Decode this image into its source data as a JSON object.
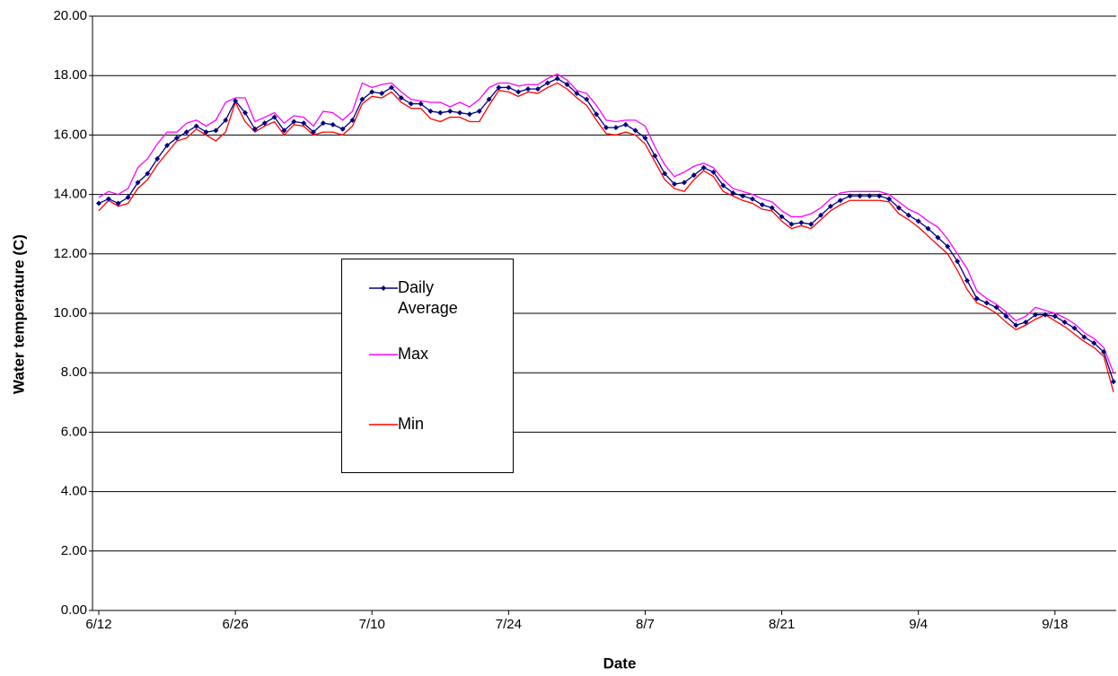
{
  "chart_data": {
    "type": "line",
    "x_label": "Date",
    "y_label": "Water temperature (C)",
    "x": [
      "6/12",
      "6/13",
      "6/14",
      "6/15",
      "6/16",
      "6/17",
      "6/18",
      "6/19",
      "6/20",
      "6/21",
      "6/22",
      "6/23",
      "6/24",
      "6/25",
      "6/26",
      "6/27",
      "6/28",
      "6/29",
      "6/30",
      "7/1",
      "7/2",
      "7/3",
      "7/4",
      "7/5",
      "7/6",
      "7/7",
      "7/8",
      "7/9",
      "7/10",
      "7/11",
      "7/12",
      "7/13",
      "7/14",
      "7/15",
      "7/16",
      "7/17",
      "7/18",
      "7/19",
      "7/20",
      "7/21",
      "7/22",
      "7/23",
      "7/24",
      "7/25",
      "7/26",
      "7/27",
      "7/28",
      "7/29",
      "7/30",
      "7/31",
      "8/1",
      "8/2",
      "8/3",
      "8/4",
      "8/5",
      "8/6",
      "8/7",
      "8/8",
      "8/9",
      "8/10",
      "8/11",
      "8/12",
      "8/13",
      "8/14",
      "8/15",
      "8/16",
      "8/17",
      "8/18",
      "8/19",
      "8/20",
      "8/21",
      "8/22",
      "8/23",
      "8/24",
      "8/25",
      "8/26",
      "8/27",
      "8/28",
      "8/29",
      "8/30",
      "8/31",
      "9/1",
      "9/2",
      "9/3",
      "9/4",
      "9/5",
      "9/6",
      "9/7",
      "9/8",
      "9/9",
      "9/10",
      "9/11",
      "9/12",
      "9/13",
      "9/14",
      "9/15",
      "9/16",
      "9/17",
      "9/18",
      "9/19",
      "9/20",
      "9/21",
      "9/22",
      "9/23",
      "9/24"
    ],
    "xticks": [
      "6/12",
      "6/26",
      "7/10",
      "7/24",
      "8/7",
      "8/21",
      "9/4",
      "9/18"
    ],
    "ylim": [
      0,
      20
    ],
    "yticks": [
      {
        "value": 0,
        "label": "0.00"
      },
      {
        "value": 2,
        "label": "2.00"
      },
      {
        "value": 4,
        "label": "4.00"
      },
      {
        "value": 6,
        "label": "6.00"
      },
      {
        "value": 8,
        "label": "8.00"
      },
      {
        "value": 10,
        "label": "10.00"
      },
      {
        "value": 12,
        "label": "12.00"
      },
      {
        "value": 14,
        "label": "14.00"
      },
      {
        "value": 16,
        "label": "16.00"
      },
      {
        "value": 18,
        "label": "18.00"
      },
      {
        "value": 20,
        "label": "20.00"
      }
    ],
    "grid": true,
    "series": [
      {
        "name": "Daily Average",
        "color": "#000080",
        "marker": "diamond",
        "values": [
          13.7,
          13.85,
          13.7,
          13.9,
          14.4,
          14.7,
          15.2,
          15.65,
          15.9,
          16.1,
          16.3,
          16.1,
          16.15,
          16.5,
          17.15,
          16.75,
          16.2,
          16.4,
          16.6,
          16.15,
          16.45,
          16.4,
          16.1,
          16.4,
          16.35,
          16.2,
          16.5,
          17.2,
          17.45,
          17.4,
          17.6,
          17.25,
          17.05,
          17.05,
          16.8,
          16.75,
          16.8,
          16.75,
          16.7,
          16.8,
          17.2,
          17.6,
          17.6,
          17.45,
          17.55,
          17.55,
          17.75,
          17.9,
          17.7,
          17.4,
          17.2,
          16.7,
          16.25,
          16.25,
          16.35,
          16.15,
          15.9,
          15.3,
          14.7,
          14.35,
          14.4,
          14.65,
          14.9,
          14.75,
          14.3,
          14.05,
          13.95,
          13.85,
          13.65,
          13.55,
          13.25,
          13.0,
          13.05,
          13.0,
          13.3,
          13.6,
          13.8,
          13.95,
          13.95,
          13.95,
          13.95,
          13.85,
          13.55,
          13.3,
          13.1,
          12.85,
          12.55,
          12.25,
          11.75,
          11.1,
          10.5,
          10.35,
          10.2,
          9.9,
          9.6,
          9.7,
          9.95,
          9.95,
          9.9,
          9.7,
          9.5,
          9.2,
          9.0,
          8.7,
          7.7
        ]
      },
      {
        "name": "Max",
        "color": "#ff00ff",
        "values": [
          13.9,
          14.1,
          14.0,
          14.2,
          14.9,
          15.2,
          15.7,
          16.1,
          16.1,
          16.4,
          16.5,
          16.3,
          16.5,
          17.1,
          17.25,
          17.25,
          16.45,
          16.6,
          16.75,
          16.4,
          16.65,
          16.6,
          16.3,
          16.8,
          16.75,
          16.5,
          16.8,
          17.75,
          17.6,
          17.7,
          17.75,
          17.45,
          17.2,
          17.15,
          17.1,
          17.1,
          16.95,
          17.1,
          16.95,
          17.2,
          17.6,
          17.75,
          17.75,
          17.65,
          17.7,
          17.7,
          17.9,
          18.05,
          17.85,
          17.5,
          17.4,
          17.0,
          16.5,
          16.45,
          16.5,
          16.5,
          16.3,
          15.6,
          15.0,
          14.6,
          14.75,
          14.95,
          15.05,
          14.9,
          14.5,
          14.2,
          14.1,
          14.0,
          13.85,
          13.75,
          13.45,
          13.25,
          13.25,
          13.35,
          13.55,
          13.85,
          14.05,
          14.1,
          14.1,
          14.1,
          14.1,
          14.0,
          13.75,
          13.5,
          13.35,
          13.1,
          12.9,
          12.5,
          12.0,
          11.5,
          10.75,
          10.5,
          10.3,
          10.05,
          9.75,
          9.9,
          10.2,
          10.1,
          10.0,
          9.85,
          9.65,
          9.35,
          9.15,
          8.85,
          8.0
        ]
      },
      {
        "name": "Min",
        "color": "#ff0000",
        "values": [
          13.45,
          13.8,
          13.6,
          13.7,
          14.2,
          14.5,
          15.0,
          15.4,
          15.8,
          15.9,
          16.2,
          16.0,
          15.8,
          16.1,
          17.1,
          16.45,
          16.1,
          16.3,
          16.45,
          16.0,
          16.35,
          16.3,
          16.0,
          16.1,
          16.1,
          16.0,
          16.3,
          17.05,
          17.3,
          17.25,
          17.45,
          17.1,
          16.9,
          16.9,
          16.55,
          16.45,
          16.6,
          16.6,
          16.45,
          16.45,
          17.0,
          17.5,
          17.45,
          17.3,
          17.45,
          17.4,
          17.6,
          17.75,
          17.55,
          17.25,
          17.0,
          16.5,
          16.05,
          16.0,
          16.1,
          16.0,
          15.7,
          15.1,
          14.5,
          14.2,
          14.1,
          14.5,
          14.8,
          14.6,
          14.1,
          13.95,
          13.8,
          13.7,
          13.5,
          13.45,
          13.1,
          12.85,
          12.95,
          12.85,
          13.15,
          13.45,
          13.65,
          13.8,
          13.8,
          13.8,
          13.8,
          13.75,
          13.35,
          13.15,
          12.9,
          12.6,
          12.3,
          12.0,
          11.45,
          10.8,
          10.35,
          10.2,
          10.0,
          9.7,
          9.45,
          9.6,
          9.8,
          9.95,
          9.75,
          9.55,
          9.3,
          9.05,
          8.85,
          8.55,
          7.35
        ]
      }
    ]
  }
}
